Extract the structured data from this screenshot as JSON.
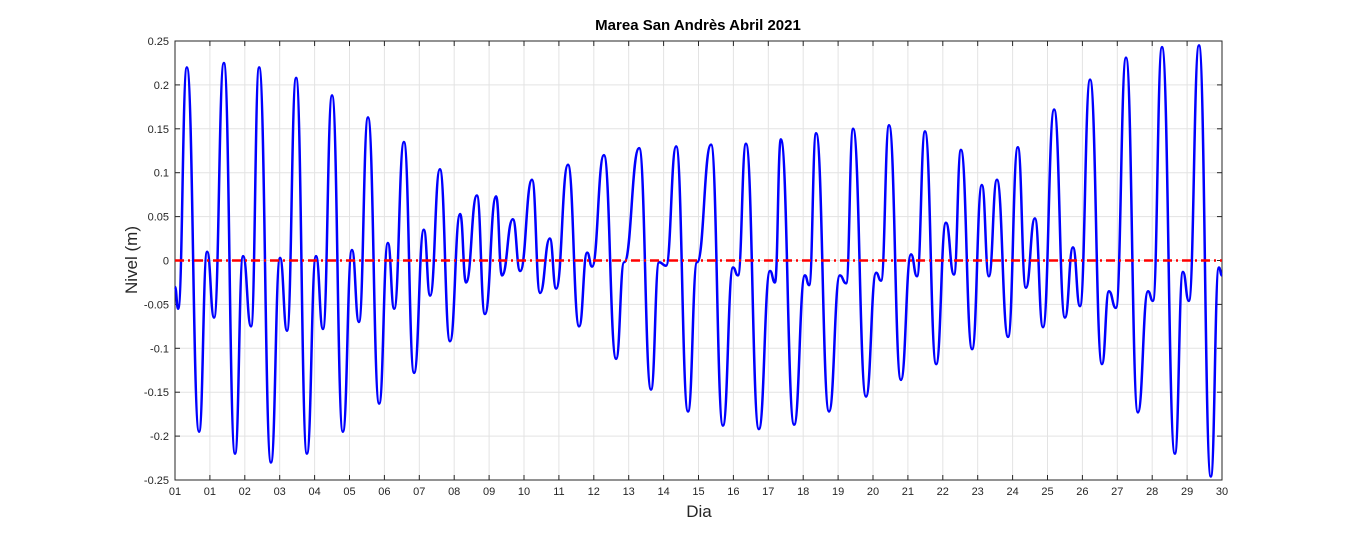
{
  "chart_data": {
    "type": "line",
    "title": "Marea San Andrès Abril 2021",
    "xlabel": "Dia",
    "ylabel": "Nivel (m)",
    "xlim": [
      0,
      30
    ],
    "ylim": [
      -0.25,
      0.25
    ],
    "grid": true,
    "xticks": [
      {
        "value": 0,
        "label": "01"
      },
      {
        "value": 1,
        "label": "01"
      },
      {
        "value": 2,
        "label": "02"
      },
      {
        "value": 3,
        "label": "03"
      },
      {
        "value": 4,
        "label": "04"
      },
      {
        "value": 5,
        "label": "05"
      },
      {
        "value": 6,
        "label": "06"
      },
      {
        "value": 7,
        "label": "07"
      },
      {
        "value": 8,
        "label": "08"
      },
      {
        "value": 9,
        "label": "09"
      },
      {
        "value": 10,
        "label": "10"
      },
      {
        "value": 11,
        "label": "11"
      },
      {
        "value": 12,
        "label": "12"
      },
      {
        "value": 13,
        "label": "13"
      },
      {
        "value": 14,
        "label": "14"
      },
      {
        "value": 15,
        "label": "15"
      },
      {
        "value": 16,
        "label": "16"
      },
      {
        "value": 17,
        "label": "17"
      },
      {
        "value": 18,
        "label": "18"
      },
      {
        "value": 19,
        "label": "19"
      },
      {
        "value": 20,
        "label": "20"
      },
      {
        "value": 21,
        "label": "21"
      },
      {
        "value": 22,
        "label": "22"
      },
      {
        "value": 23,
        "label": "23"
      },
      {
        "value": 24,
        "label": "24"
      },
      {
        "value": 25,
        "label": "25"
      },
      {
        "value": 26,
        "label": "26"
      },
      {
        "value": 27,
        "label": "27"
      },
      {
        "value": 28,
        "label": "28"
      },
      {
        "value": 29,
        "label": "29"
      },
      {
        "value": 30,
        "label": "30"
      }
    ],
    "yticks": [
      -0.25,
      -0.2,
      -0.15,
      -0.1,
      -0.05,
      0,
      0.05,
      0.1,
      0.15,
      0.2,
      0.25
    ],
    "reference_line": {
      "y": 0,
      "color": "#ff0000"
    },
    "x": [
      0,
      0.09,
      0.34,
      0.69,
      0.92,
      1.12,
      1.4,
      1.72,
      1.95,
      2.18,
      2.41,
      2.75,
      3.01,
      3.21,
      3.47,
      3.78,
      4.04,
      4.24,
      4.5,
      4.81,
      5.07,
      5.27,
      5.53,
      5.85,
      6.1,
      6.28,
      6.56,
      6.85,
      7.13,
      7.31,
      7.59,
      7.88,
      8.17,
      8.34,
      8.65,
      8.88,
      9.2,
      9.37,
      9.68,
      9.89,
      10.23,
      10.46,
      10.74,
      10.92,
      11.26,
      11.58,
      11.81,
      11.95,
      12.29,
      12.64,
      12.87,
      13.3,
      13.64,
      13.87,
      14.07,
      14.36,
      14.7,
      14.96,
      15.36,
      15.7,
      15.99,
      16.13,
      16.36,
      16.73,
      17.05,
      17.19,
      17.36,
      17.74,
      18.05,
      18.17,
      18.37,
      18.74,
      19.05,
      19.23,
      19.43,
      19.8,
      20.09,
      20.23,
      20.46,
      20.8,
      21.09,
      21.26,
      21.49,
      21.81,
      22.09,
      22.32,
      22.52,
      22.84,
      23.12,
      23.32,
      23.55,
      23.87,
      24.15,
      24.38,
      24.64,
      24.87,
      25.19,
      25.5,
      25.73,
      25.93,
      26.22,
      26.56,
      26.76,
      26.96,
      27.25,
      27.59,
      27.88,
      28.02,
      28.28,
      28.65,
      28.88,
      29.05,
      29.34,
      29.68,
      29.91,
      30.0
    ],
    "series": [
      {
        "name": "Nivel",
        "color": "#0000ff",
        "values": [
          -0.03,
          -0.055,
          0.22,
          -0.195,
          0.01,
          -0.065,
          0.225,
          -0.22,
          0.005,
          -0.075,
          0.22,
          -0.23,
          0.003,
          -0.08,
          0.208,
          -0.22,
          0.005,
          -0.078,
          0.188,
          -0.195,
          0.012,
          -0.07,
          0.163,
          -0.163,
          0.02,
          -0.055,
          0.135,
          -0.128,
          0.035,
          -0.04,
          0.104,
          -0.092,
          0.053,
          -0.025,
          0.074,
          -0.061,
          0.073,
          -0.017,
          0.047,
          -0.012,
          0.092,
          -0.037,
          0.025,
          -0.032,
          0.109,
          -0.075,
          0.009,
          -0.007,
          0.12,
          -0.112,
          -0.002,
          0.128,
          -0.147,
          -0.002,
          -0.006,
          0.13,
          -0.172,
          -0.002,
          0.132,
          -0.188,
          -0.008,
          -0.017,
          0.133,
          -0.192,
          -0.012,
          -0.025,
          0.138,
          -0.187,
          -0.017,
          -0.028,
          0.145,
          -0.172,
          -0.017,
          -0.026,
          0.15,
          -0.155,
          -0.014,
          -0.023,
          0.154,
          -0.136,
          0.007,
          -0.018,
          0.147,
          -0.118,
          0.043,
          -0.016,
          0.126,
          -0.101,
          0.086,
          -0.018,
          0.092,
          -0.087,
          0.129,
          -0.031,
          0.048,
          -0.076,
          0.172,
          -0.065,
          0.015,
          -0.052,
          0.206,
          -0.118,
          -0.035,
          -0.054,
          0.231,
          -0.173,
          -0.035,
          -0.046,
          0.243,
          -0.22,
          -0.013,
          -0.046,
          0.245,
          -0.246,
          -0.008,
          -0.017
        ]
      }
    ]
  }
}
